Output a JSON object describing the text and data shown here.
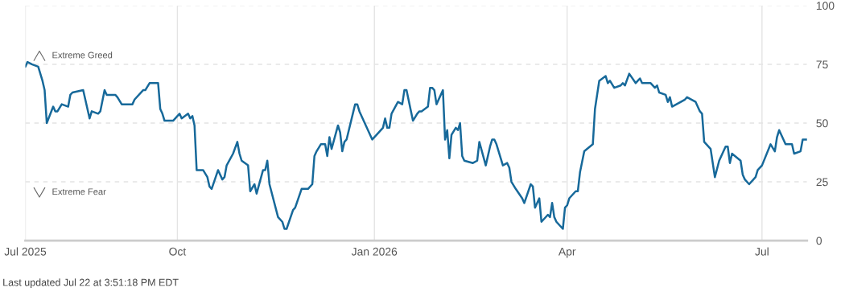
{
  "chart_data": {
    "type": "line",
    "x": [
      "2025-07-22",
      "2025-07-23",
      "2025-07-25",
      "2025-07-28",
      "2025-07-30",
      "2025-07-31",
      "2025-08-01",
      "2025-08-04",
      "2025-08-05",
      "2025-08-06",
      "2025-08-08",
      "2025-08-11",
      "2025-08-12",
      "2025-08-13",
      "2025-08-18",
      "2025-08-21",
      "2025-08-22",
      "2025-08-25",
      "2025-08-26",
      "2025-08-28",
      "2025-08-29",
      "2025-09-02",
      "2025-09-03",
      "2025-09-05",
      "2025-09-10",
      "2025-09-11",
      "2025-09-15",
      "2025-09-16",
      "2025-09-18",
      "2025-09-22",
      "2025-09-23",
      "2025-09-24",
      "2025-09-25",
      "2025-09-26",
      "2025-09-29",
      "2025-10-02",
      "2025-10-03",
      "2025-10-06",
      "2025-10-07",
      "2025-10-08",
      "2025-10-09",
      "2025-10-10",
      "2025-10-13",
      "2025-10-15",
      "2025-10-16",
      "2025-10-17",
      "2025-10-20",
      "2025-10-22",
      "2025-10-23",
      "2025-10-24",
      "2025-10-27",
      "2025-10-29",
      "2025-10-30",
      "2025-10-31",
      "2025-11-03",
      "2025-11-04",
      "2025-11-06",
      "2025-11-07",
      "2025-11-10",
      "2025-11-11",
      "2025-11-12",
      "2025-11-13",
      "2025-11-17",
      "2025-11-19",
      "2025-11-20",
      "2025-11-21",
      "2025-11-24",
      "2025-11-25",
      "2025-11-28",
      "2025-12-01",
      "2025-12-03",
      "2025-12-04",
      "2025-12-05",
      "2025-12-07",
      "2025-12-09",
      "2025-12-10",
      "2025-12-11",
      "2025-12-12",
      "2025-12-15",
      "2025-12-16",
      "2025-12-17",
      "2025-12-18",
      "2025-12-19",
      "2025-12-23",
      "2025-12-24",
      "2025-12-25",
      "2025-12-31",
      "2026-01-02",
      "2026-01-05",
      "2026-01-06",
      "2026-01-07",
      "2026-01-08",
      "2026-01-09",
      "2026-01-12",
      "2026-01-14",
      "2026-01-15",
      "2026-01-16",
      "2026-01-19",
      "2026-01-21",
      "2026-01-22",
      "2026-01-23",
      "2026-01-26",
      "2026-01-27",
      "2026-01-28",
      "2026-01-29",
      "2026-01-30",
      "2026-02-02",
      "2026-02-03",
      "2026-02-04",
      "2026-02-05",
      "2026-02-06",
      "2026-02-08",
      "2026-02-09",
      "2026-02-10",
      "2026-02-11",
      "2026-02-12",
      "2026-02-16",
      "2026-02-18",
      "2026-02-19",
      "2026-02-22",
      "2026-02-24",
      "2026-02-25",
      "2026-02-26",
      "2026-02-27",
      "2026-03-02",
      "2026-03-04",
      "2026-03-05",
      "2026-03-06",
      "2026-03-08",
      "2026-03-11",
      "2026-03-12",
      "2026-03-15",
      "2026-03-16",
      "2026-03-17",
      "2026-03-19",
      "2026-03-20",
      "2026-03-23",
      "2026-03-24",
      "2026-03-25",
      "2026-03-26",
      "2026-03-27",
      "2026-03-30",
      "2026-03-31",
      "2026-04-01",
      "2026-04-02",
      "2026-04-05",
      "2026-04-06",
      "2026-04-07",
      "2026-04-09",
      "2026-04-13",
      "2026-04-14",
      "2026-04-16",
      "2026-04-19",
      "2026-04-20",
      "2026-04-21",
      "2026-04-23",
      "2026-04-26",
      "2026-04-27",
      "2026-04-28",
      "2026-04-30",
      "2026-05-03",
      "2026-05-04",
      "2026-05-05",
      "2026-05-06",
      "2026-05-10",
      "2026-05-12",
      "2026-05-13",
      "2026-05-14",
      "2026-05-17",
      "2026-05-18",
      "2026-05-19",
      "2026-05-20",
      "2026-05-26",
      "2026-05-27",
      "2026-05-31",
      "2026-06-02",
      "2026-06-03",
      "2026-06-04",
      "2026-06-07",
      "2026-06-09",
      "2026-06-11",
      "2026-06-14",
      "2026-06-15",
      "2026-06-16",
      "2026-06-17",
      "2026-06-21",
      "2026-06-22",
      "2026-06-23",
      "2026-06-25",
      "2026-06-28",
      "2026-06-29",
      "2026-07-01",
      "2026-07-05",
      "2026-07-07",
      "2026-07-08",
      "2026-07-09",
      "2026-07-12",
      "2026-07-15",
      "2026-07-16",
      "2026-07-19",
      "2026-07-20",
      "2026-07-22"
    ],
    "series": [
      {
        "color": "#17699a",
        "values": [
          74,
          76,
          75,
          74,
          68,
          64,
          50,
          57,
          55,
          55,
          58,
          57,
          62,
          63,
          64,
          52,
          55,
          54,
          55,
          64,
          62,
          62,
          61,
          58,
          58,
          60,
          64,
          64,
          67,
          67,
          56,
          54,
          51,
          51,
          51,
          54,
          52,
          54,
          52,
          53,
          49,
          30,
          30,
          27,
          23,
          22,
          30,
          26,
          27,
          32,
          37,
          42,
          37,
          34,
          32,
          21,
          24,
          20,
          30,
          30,
          34,
          24,
          10,
          8,
          5,
          5,
          13,
          14,
          22,
          22,
          24,
          36,
          38,
          41,
          41,
          36,
          44,
          39,
          49,
          46,
          38,
          42,
          43,
          58,
          58,
          55,
          43,
          45,
          48,
          52,
          48,
          48,
          54,
          59,
          58,
          64,
          64,
          51,
          54,
          55,
          55,
          57,
          65,
          65,
          64,
          58,
          64,
          43,
          47,
          35,
          45,
          48,
          47,
          50,
          36,
          34,
          33,
          34,
          42,
          32,
          40,
          43,
          43,
          41,
          32,
          33,
          31,
          25,
          22,
          18,
          16,
          24,
          23,
          14,
          18,
          8,
          11,
          10,
          16,
          10,
          8,
          5,
          14,
          15,
          18,
          21,
          21,
          29,
          38,
          41,
          56,
          68,
          70,
          67,
          68,
          65,
          66,
          67,
          66,
          71,
          67,
          68,
          69,
          67,
          67,
          65,
          66,
          63,
          62,
          59,
          61,
          57,
          60,
          61,
          59,
          55,
          54,
          42,
          39,
          27,
          34,
          40,
          40,
          33,
          37,
          34,
          28,
          26,
          24,
          27,
          30,
          32,
          41,
          38,
          44,
          47,
          41,
          41,
          37,
          38,
          43,
          43
        ]
      }
    ],
    "xlim": [
      "2025-07-22",
      "2026-07-22"
    ],
    "xticks": [
      {
        "value": "2025-07-22",
        "label": "Jul 2025"
      },
      {
        "value": "2025-10-01",
        "label": "Oct"
      },
      {
        "value": "2026-01-01",
        "label": "Jan 2026"
      },
      {
        "value": "2026-04-01",
        "label": "Apr"
      },
      {
        "value": "2026-07-01",
        "label": "Jul"
      }
    ],
    "ylim": [
      0,
      100
    ],
    "yticks": [
      0,
      25,
      50,
      75,
      100
    ],
    "grid": true,
    "marker": "none",
    "line_style": "solid",
    "annotations": [
      "Extreme Greed",
      "Extreme Fear",
      "Last updated Jul 22 at 3:51:18 PM EDT"
    ]
  }
}
